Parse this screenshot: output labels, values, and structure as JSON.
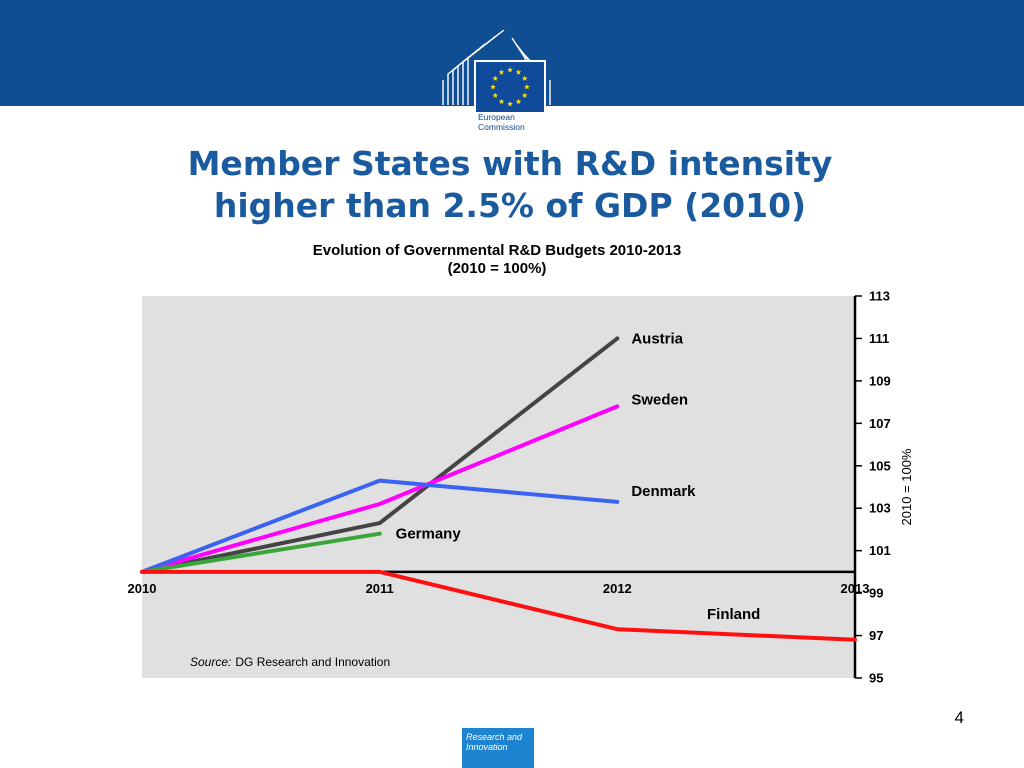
{
  "logo": {
    "text_line1": "European",
    "text_line2": "Commission"
  },
  "slide": {
    "title_line1": "Member States with R&D intensity",
    "title_line2": "higher than 2.5% of GDP (2010)",
    "page_number": "4"
  },
  "footer": {
    "line1": "Research and",
    "line2": "Innovation"
  },
  "colors": {
    "banner": "#104e94",
    "plot_bg": "#e0e0e0",
    "title": "#1a5a9f",
    "footer": "#1c84d0"
  },
  "chart_data": {
    "type": "line",
    "title": "Evolution of Governmental R&D Budgets 2010-2013",
    "subtitle": "(2010 = 100%)",
    "xlabel": "",
    "ylabel": "2010 = 100%",
    "x": [
      "2010",
      "2011",
      "2012",
      "2013"
    ],
    "xlim": [
      2010,
      2013
    ],
    "ylim": [
      95,
      113
    ],
    "yticks": [
      95,
      97,
      99,
      101,
      103,
      105,
      107,
      109,
      111,
      113
    ],
    "baseline": 100,
    "grid": false,
    "series": [
      {
        "name": "Austria",
        "color": "#444444",
        "x": [
          2010,
          2011,
          2012
        ],
        "values": [
          100,
          102.3,
          111
        ]
      },
      {
        "name": "Sweden",
        "color": "#ff00ff",
        "x": [
          2010,
          2011,
          2012
        ],
        "values": [
          100,
          103.2,
          107.8
        ]
      },
      {
        "name": "Denmark",
        "color": "#3b63f2",
        "x": [
          2010,
          2011,
          2012
        ],
        "values": [
          100,
          104.3,
          103.3
        ]
      },
      {
        "name": "Germany",
        "color": "#3aa63a",
        "x": [
          2010,
          2011
        ],
        "values": [
          100,
          101.8
        ]
      },
      {
        "name": "Finland",
        "color": "#ff1010",
        "x": [
          2010,
          2011,
          2012,
          2013
        ],
        "values": [
          100,
          100,
          97.3,
          96.8
        ]
      }
    ],
    "source_label": "Source:",
    "source_text": "DG Research and Innovation"
  }
}
